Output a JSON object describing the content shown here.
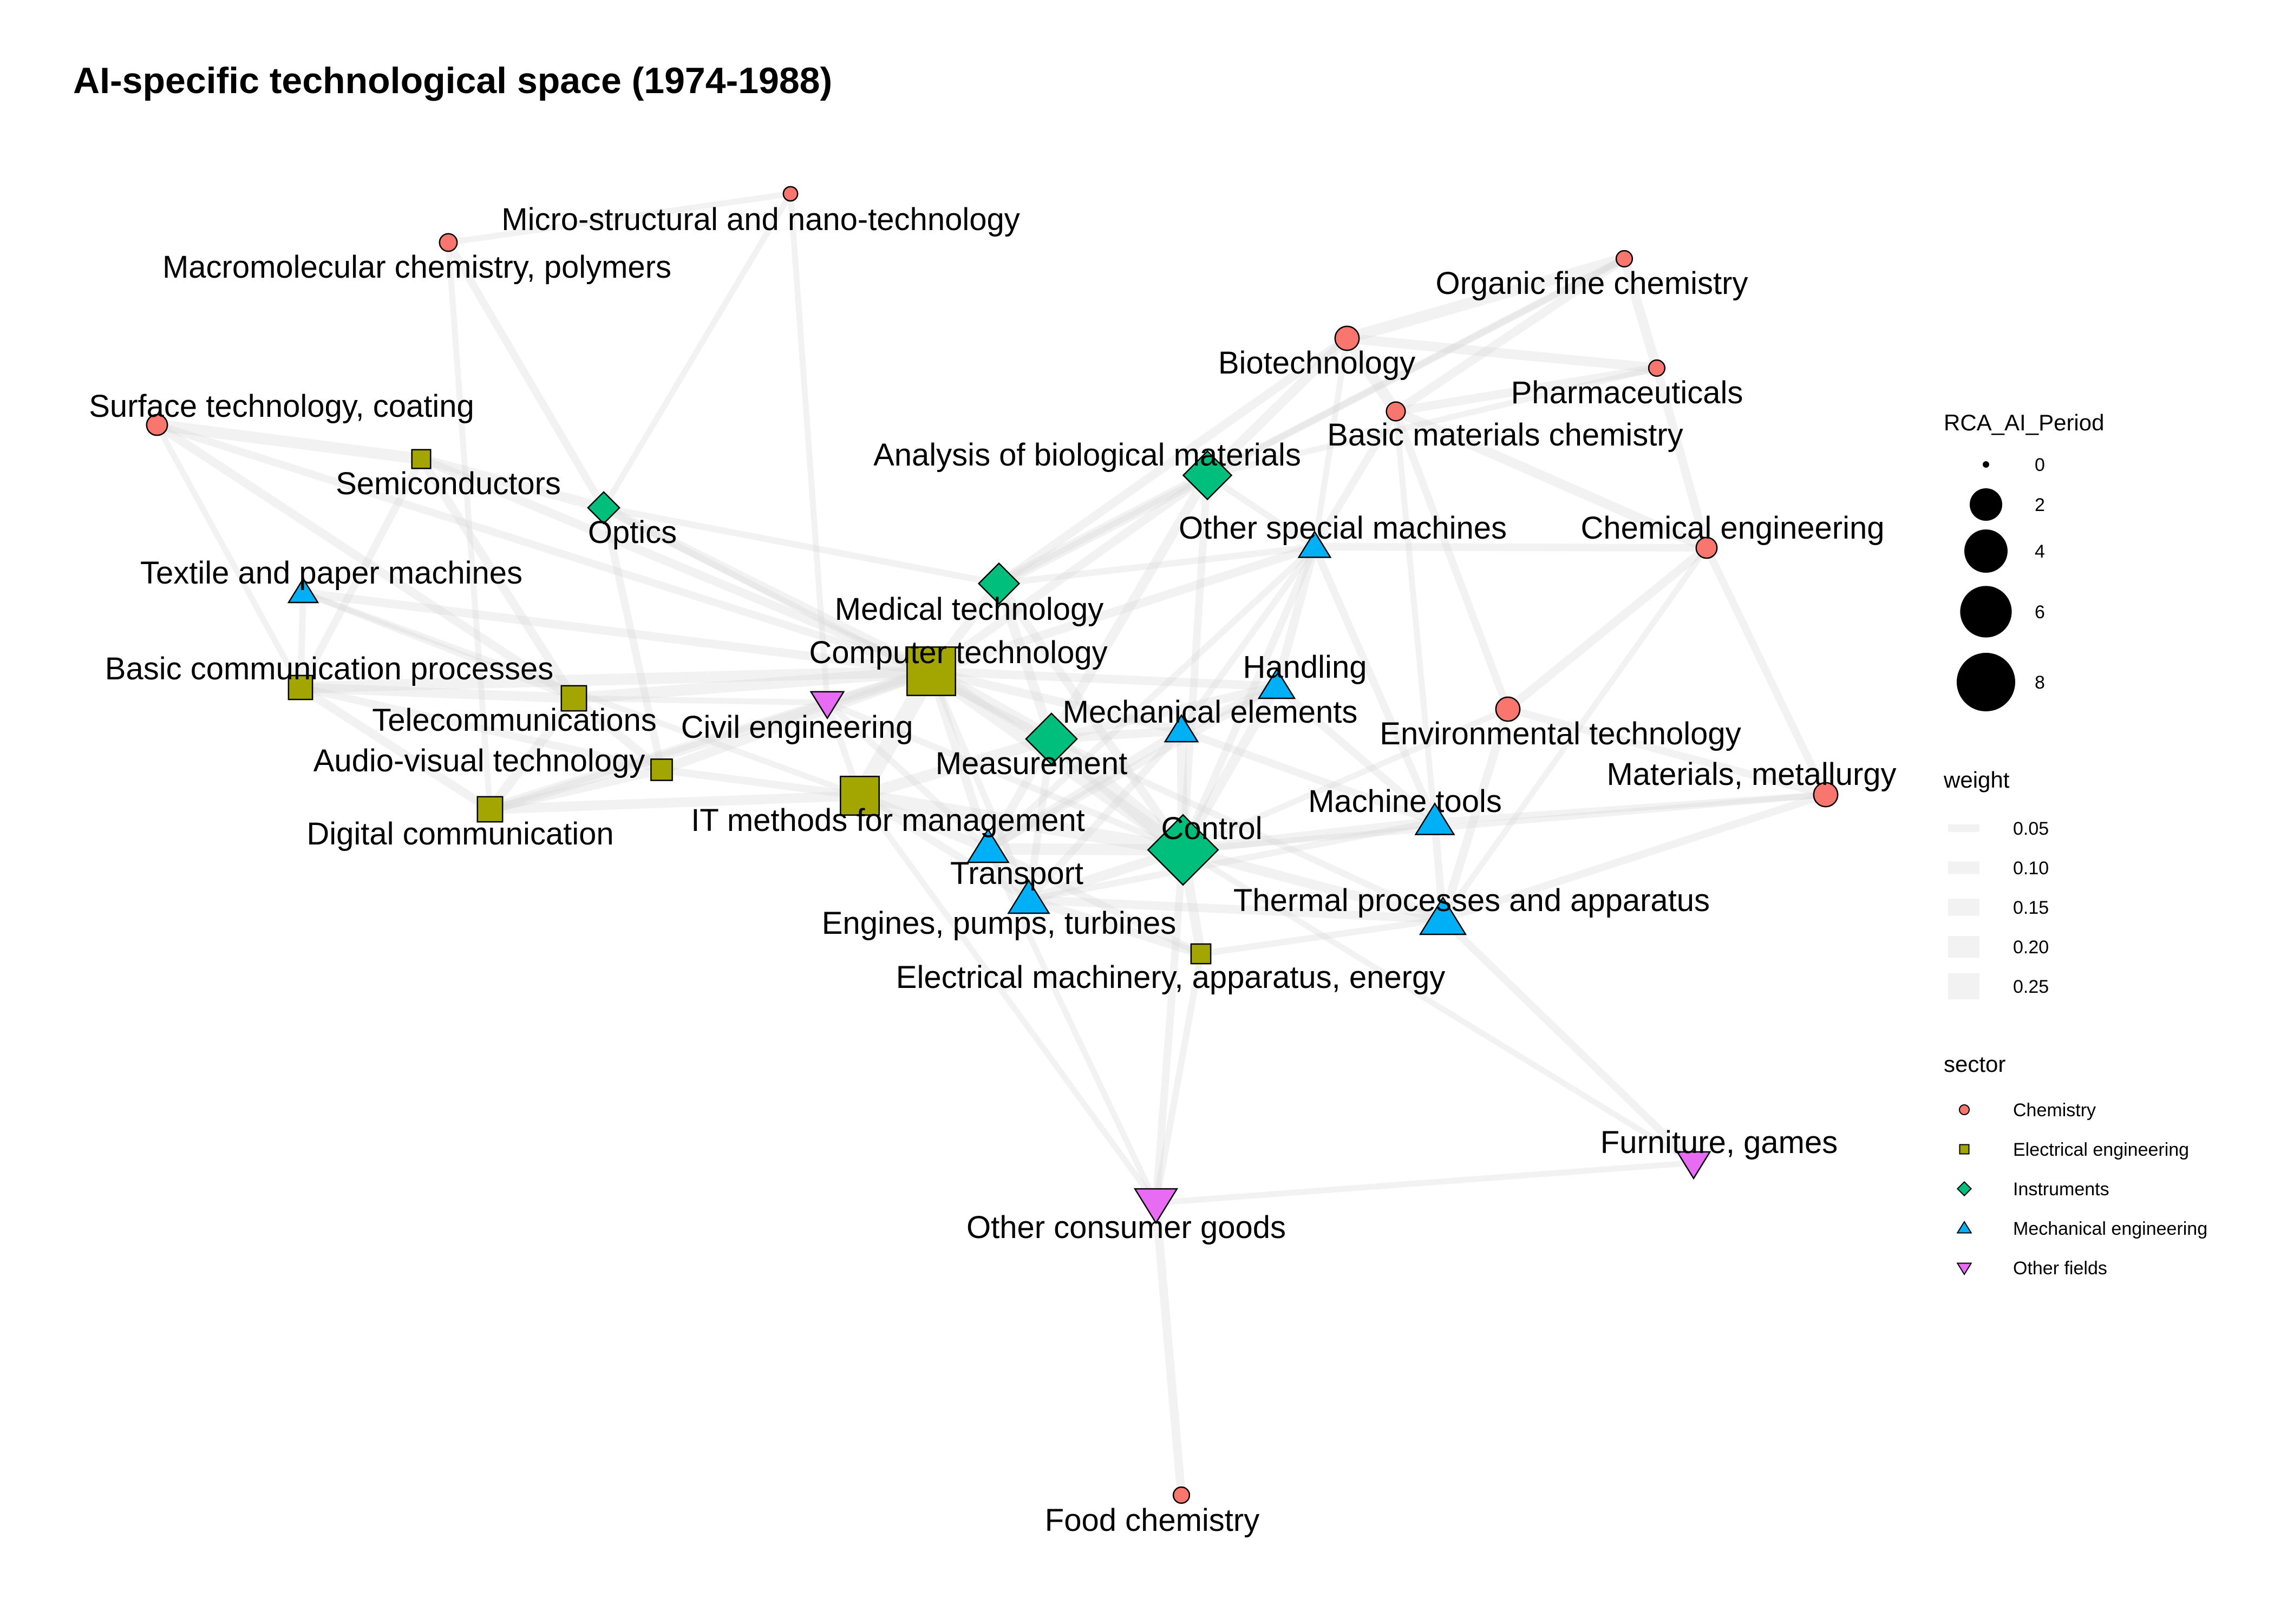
{
  "title": "AI-specific technological space (1974-1988)",
  "colors": {
    "Chemistry": "#F8766D",
    "Electrical engineering": "#A3A500",
    "Instruments": "#00BF7D",
    "Mechanical engineering": "#00B0F6",
    "Other fields": "#E76BF3",
    "edge": "#d9d9d9"
  },
  "sector_shapes": {
    "Chemistry": "circle",
    "Electrical engineering": "square",
    "Instruments": "diamond",
    "Mechanical engineering": "triangle-up",
    "Other fields": "triangle-down"
  },
  "nodes": [
    {
      "id": "micro",
      "label": "Micro-structural and nano-technology",
      "sector": "Chemistry",
      "rca": 0.1
    },
    {
      "id": "macro",
      "label": "Macromolecular chemistry, polymers",
      "sector": "Chemistry",
      "rca": 0.3
    },
    {
      "id": "organic",
      "label": "Organic fine chemistry",
      "sector": "Chemistry",
      "rca": 0.2
    },
    {
      "id": "biotech",
      "label": "Biotechnology",
      "sector": "Chemistry",
      "rca": 1.0
    },
    {
      "id": "pharma",
      "label": "Pharmaceuticals",
      "sector": "Chemistry",
      "rca": 0.2
    },
    {
      "id": "surface",
      "label": "Surface technology, coating",
      "sector": "Chemistry",
      "rca": 0.6
    },
    {
      "id": "basicmat",
      "label": "Basic materials chemistry",
      "sector": "Chemistry",
      "rca": 0.4
    },
    {
      "id": "semi",
      "label": "Semiconductors",
      "sector": "Electrical engineering",
      "rca": 0.5
    },
    {
      "id": "analysis",
      "label": "Analysis of biological materials",
      "sector": "Instruments",
      "rca": 3.0
    },
    {
      "id": "optics",
      "label": "Optics",
      "sector": "Instruments",
      "rca": 0.8
    },
    {
      "id": "otherspec",
      "label": "Other special machines",
      "sector": "Mechanical engineering",
      "rca": 0.8
    },
    {
      "id": "chemeng",
      "label": "Chemical engineering",
      "sector": "Chemistry",
      "rca": 0.6
    },
    {
      "id": "textile",
      "label": "Textile and paper machines",
      "sector": "Mechanical engineering",
      "rca": 0.6
    },
    {
      "id": "medtech",
      "label": "Medical technology",
      "sector": "Instruments",
      "rca": 1.8
    },
    {
      "id": "comptech",
      "label": "Computer technology",
      "sector": "Electrical engineering",
      "rca": 8.5
    },
    {
      "id": "basiccomm",
      "label": "Basic communication processes",
      "sector": "Electrical engineering",
      "rca": 1.2
    },
    {
      "id": "handling",
      "label": "Handling",
      "sector": "Mechanical engineering",
      "rca": 1.2
    },
    {
      "id": "telecom",
      "label": "Telecommunications",
      "sector": "Electrical engineering",
      "rca": 1.4
    },
    {
      "id": "civil",
      "label": "Civil engineering",
      "sector": "Other fields",
      "rca": 0.9
    },
    {
      "id": "mechel",
      "label": "Mechanical elements",
      "sector": "Mechanical engineering",
      "rca": 0.9
    },
    {
      "id": "envtech",
      "label": "Environmental technology",
      "sector": "Chemistry",
      "rca": 1.0
    },
    {
      "id": "measure",
      "label": "Measurement",
      "sector": "Instruments",
      "rca": 3.5
    },
    {
      "id": "audiovis",
      "label": "Audio-visual technology",
      "sector": "Electrical engineering",
      "rca": 0.8
    },
    {
      "id": "matmet",
      "label": "Materials, metallurgy",
      "sector": "Chemistry",
      "rca": 1.0
    },
    {
      "id": "machtools",
      "label": "Machine tools",
      "sector": "Mechanical engineering",
      "rca": 1.5
    },
    {
      "id": "itmethods",
      "label": "IT methods for management",
      "sector": "Electrical engineering",
      "rca": 4.8
    },
    {
      "id": "digcomm",
      "label": "Digital communication",
      "sector": "Electrical engineering",
      "rca": 1.4
    },
    {
      "id": "control",
      "label": "Control",
      "sector": "Instruments",
      "rca": 8.0
    },
    {
      "id": "transport",
      "label": "Transport",
      "sector": "Mechanical engineering",
      "rca": 1.8
    },
    {
      "id": "thermal",
      "label": "Thermal processes and apparatus",
      "sector": "Mechanical engineering",
      "rca": 2.5
    },
    {
      "id": "engines",
      "label": "Engines, pumps, turbines",
      "sector": "Mechanical engineering",
      "rca": 1.8
    },
    {
      "id": "electrical",
      "label": "Electrical machinery, apparatus, energy",
      "sector": "Electrical engineering",
      "rca": 0.6
    },
    {
      "id": "furniture",
      "label": "Furniture, games",
      "sector": "Other fields",
      "rca": 0.9
    },
    {
      "id": "otherconsumer",
      "label": "Other consumer goods",
      "sector": "Other fields",
      "rca": 2.0
    },
    {
      "id": "food",
      "label": "Food chemistry",
      "sector": "Chemistry",
      "rca": 0.2
    }
  ],
  "edges": [
    [
      "macro",
      "micro",
      0.05
    ],
    [
      "macro",
      "optics",
      0.08
    ],
    [
      "macro",
      "digcomm",
      0.05
    ],
    [
      "micro",
      "optics",
      0.05
    ],
    [
      "micro",
      "civil",
      0.05
    ],
    [
      "organic",
      "biotech",
      0.15
    ],
    [
      "organic",
      "pharma",
      0.12
    ],
    [
      "organic",
      "basicmat",
      0.1
    ],
    [
      "organic",
      "analysis",
      0.08
    ],
    [
      "organic",
      "medtech",
      0.05
    ],
    [
      "biotech",
      "pharma",
      0.12
    ],
    [
      "biotech",
      "basicmat",
      0.15
    ],
    [
      "biotech",
      "analysis",
      0.12
    ],
    [
      "biotech",
      "medtech",
      0.1
    ],
    [
      "biotech",
      "otherspec",
      0.05
    ],
    [
      "pharma",
      "basicmat",
      0.1
    ],
    [
      "pharma",
      "chemeng",
      0.1
    ],
    [
      "pharma",
      "analysis",
      0.05
    ],
    [
      "basicmat",
      "chemeng",
      0.12
    ],
    [
      "basicmat",
      "envtech",
      0.08
    ],
    [
      "basicmat",
      "otherspec",
      0.08
    ],
    [
      "basicmat",
      "machtools",
      0.05
    ],
    [
      "chemeng",
      "envtech",
      0.1
    ],
    [
      "chemeng",
      "matmet",
      0.08
    ],
    [
      "chemeng",
      "otherspec",
      0.08
    ],
    [
      "chemeng",
      "thermal",
      0.05
    ],
    [
      "envtech",
      "thermal",
      0.1
    ],
    [
      "envtech",
      "matmet",
      0.08
    ],
    [
      "envtech",
      "control",
      0.05
    ],
    [
      "matmet",
      "thermal",
      0.08
    ],
    [
      "matmet",
      "machtools",
      0.06
    ],
    [
      "matmet",
      "control",
      0.05
    ],
    [
      "surface",
      "semi",
      0.15
    ],
    [
      "surface",
      "telecom",
      0.1
    ],
    [
      "surface",
      "comptech",
      0.08
    ],
    [
      "surface",
      "basiccomm",
      0.05
    ],
    [
      "semi",
      "optics",
      0.12
    ],
    [
      "semi",
      "comptech",
      0.1
    ],
    [
      "semi",
      "telecom",
      0.1
    ],
    [
      "semi",
      "basiccomm",
      0.08
    ],
    [
      "optics",
      "comptech",
      0.12
    ],
    [
      "optics",
      "audiovis",
      0.08
    ],
    [
      "optics",
      "medtech",
      0.06
    ],
    [
      "optics",
      "measure",
      0.06
    ],
    [
      "textile",
      "comptech",
      0.1
    ],
    [
      "textile",
      "basiccomm",
      0.06
    ],
    [
      "textile",
      "itmethods",
      0.05
    ],
    [
      "textile",
      "telecom",
      0.05
    ],
    [
      "basiccomm",
      "comptech",
      0.15
    ],
    [
      "basiccomm",
      "telecom",
      0.12
    ],
    [
      "basiccomm",
      "digcomm",
      0.1
    ],
    [
      "basiccomm",
      "audiovis",
      0.08
    ],
    [
      "telecom",
      "comptech",
      0.15
    ],
    [
      "telecom",
      "digcomm",
      0.12
    ],
    [
      "telecom",
      "audiovis",
      0.1
    ],
    [
      "audiovis",
      "comptech",
      0.12
    ],
    [
      "audiovis",
      "digcomm",
      0.1
    ],
    [
      "audiovis",
      "itmethods",
      0.08
    ],
    [
      "digcomm",
      "comptech",
      0.15
    ],
    [
      "digcomm",
      "itmethods",
      0.12
    ],
    [
      "comptech",
      "itmethods",
      0.25
    ],
    [
      "comptech",
      "measure",
      0.2
    ],
    [
      "comptech",
      "control",
      0.2
    ],
    [
      "comptech",
      "medtech",
      0.12
    ],
    [
      "comptech",
      "handling",
      0.1
    ],
    [
      "comptech",
      "civil",
      0.08
    ],
    [
      "comptech",
      "mechel",
      0.1
    ],
    [
      "comptech",
      "transport",
      0.1
    ],
    [
      "comptech",
      "analysis",
      0.1
    ],
    [
      "comptech",
      "otherspec",
      0.1
    ],
    [
      "comptech",
      "engines",
      0.06
    ],
    [
      "itmethods",
      "control",
      0.2
    ],
    [
      "itmethods",
      "measure",
      0.15
    ],
    [
      "itmethods",
      "transport",
      0.12
    ],
    [
      "itmethods",
      "engines",
      0.08
    ],
    [
      "itmethods",
      "civil",
      0.06
    ],
    [
      "medtech",
      "analysis",
      0.15
    ],
    [
      "medtech",
      "measure",
      0.12
    ],
    [
      "medtech",
      "control",
      0.1
    ],
    [
      "medtech",
      "otherspec",
      0.06
    ],
    [
      "analysis",
      "measure",
      0.12
    ],
    [
      "analysis",
      "control",
      0.08
    ],
    [
      "analysis",
      "otherspec",
      0.06
    ],
    [
      "measure",
      "control",
      0.25
    ],
    [
      "measure",
      "handling",
      0.1
    ],
    [
      "measure",
      "mechel",
      0.1
    ],
    [
      "measure",
      "transport",
      0.1
    ],
    [
      "measure",
      "engines",
      0.08
    ],
    [
      "measure",
      "thermal",
      0.06
    ],
    [
      "control",
      "transport",
      0.15
    ],
    [
      "control",
      "engines",
      0.12
    ],
    [
      "control",
      "machtools",
      0.12
    ],
    [
      "control",
      "thermal",
      0.12
    ],
    [
      "control",
      "handling",
      0.12
    ],
    [
      "control",
      "mechel",
      0.12
    ],
    [
      "control",
      "electrical",
      0.12
    ],
    [
      "control",
      "otherconsumer",
      0.08
    ],
    [
      "control",
      "otherspec",
      0.08
    ],
    [
      "control",
      "civil",
      0.06
    ],
    [
      "otherspec",
      "handling",
      0.1
    ],
    [
      "otherspec",
      "machtools",
      0.08
    ],
    [
      "otherspec",
      "mechel",
      0.06
    ],
    [
      "otherspec",
      "transport",
      0.06
    ],
    [
      "handling",
      "mechel",
      0.1
    ],
    [
      "handling",
      "machtools",
      0.08
    ],
    [
      "handling",
      "transport",
      0.08
    ],
    [
      "mechel",
      "machtools",
      0.08
    ],
    [
      "mechel",
      "transport",
      0.1
    ],
    [
      "mechel",
      "engines",
      0.08
    ],
    [
      "machtools",
      "thermal",
      0.08
    ],
    [
      "machtools",
      "engines",
      0.06
    ],
    [
      "transport",
      "engines",
      0.15
    ],
    [
      "transport",
      "electrical",
      0.08
    ],
    [
      "transport",
      "otherconsumer",
      0.05
    ],
    [
      "engines",
      "thermal",
      0.1
    ],
    [
      "engines",
      "electrical",
      0.1
    ],
    [
      "thermal",
      "electrical",
      0.06
    ],
    [
      "thermal",
      "furniture",
      0.08
    ],
    [
      "electrical",
      "otherconsumer",
      0.06
    ],
    [
      "otherconsumer",
      "food",
      0.1
    ],
    [
      "otherconsumer",
      "furniture",
      0.05
    ],
    [
      "otherconsumer",
      "itmethods",
      0.05
    ],
    [
      "civil",
      "transport",
      0.06
    ],
    [
      "civil",
      "digcomm",
      0.05
    ],
    [
      "civil",
      "telecom",
      0.05
    ],
    [
      "furniture",
      "control",
      0.05
    ]
  ],
  "legend": {
    "size_title": "RCA_AI_Period",
    "size_breaks": [
      "0",
      "2",
      "4",
      "6",
      "8"
    ],
    "weight_title": "weight",
    "weight_breaks": [
      "0.05",
      "0.10",
      "0.15",
      "0.20",
      "0.25"
    ],
    "sector_title": "sector",
    "sector_items": [
      "Chemistry",
      "Electrical engineering",
      "Instruments",
      "Mechanical engineering",
      "Other fields"
    ]
  }
}
